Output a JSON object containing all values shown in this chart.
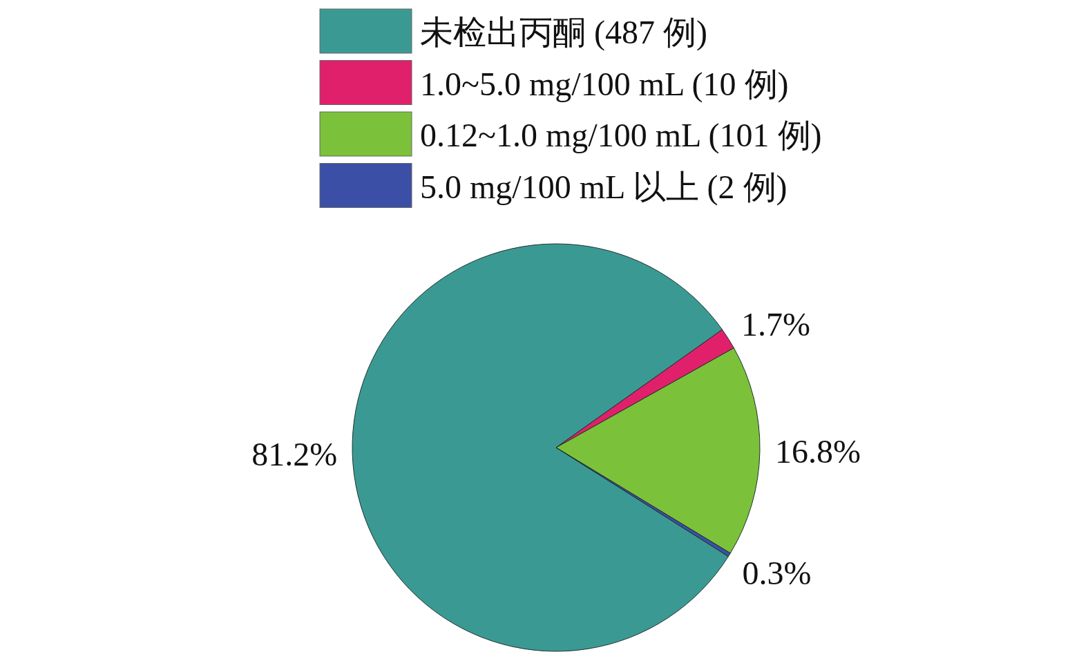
{
  "chart_data": {
    "type": "pie",
    "categories": [
      "未检出丙酮 (487 例)",
      "1.0~5.0 mg/100 mL (10 例)",
      "0.12~1.0 mg/100 mL (101 例)",
      "5.0 mg/100 mL 以上 (2 例)"
    ],
    "values": [
      81.2,
      1.7,
      16.8,
      0.3
    ],
    "colors": [
      "#3a9a93",
      "#e0206a",
      "#7cc13a",
      "#3c4fa6"
    ],
    "value_labels": [
      "81.2%",
      "1.7%",
      "16.8%",
      "0.3%"
    ],
    "legend": "top"
  }
}
